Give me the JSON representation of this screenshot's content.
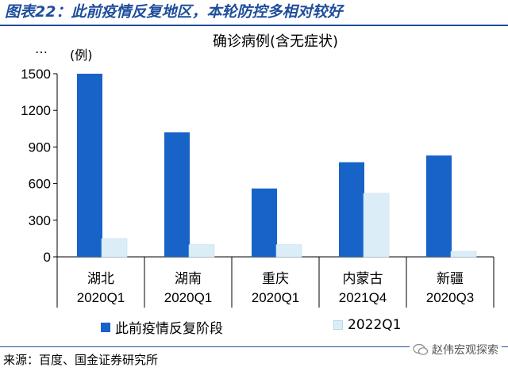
{
  "figure_title": "图表22：此前疫情反复地区，本轮防控多相对较好",
  "source_text": "来源：百度、国金证券研究所",
  "watermark_text": "赵伟宏观探索",
  "top_left_mark": "…",
  "colors": {
    "title": "#1f4e9c",
    "series1": "#1763c8",
    "series2": "#dbeef8"
  },
  "chart_data": {
    "type": "bar",
    "title": "确诊病例(含无症状)",
    "ylabel": "(例)",
    "xlabel": "",
    "categories": [
      [
        "湖北",
        "2020Q1"
      ],
      [
        "湖南",
        "2020Q1"
      ],
      [
        "重庆",
        "2020Q1"
      ],
      [
        "内蒙古",
        "2021Q4"
      ],
      [
        "新疆",
        "2020Q3"
      ]
    ],
    "series": [
      {
        "name": "此前疫情反复阶段",
        "color": "#1763c8",
        "values": [
          1500,
          1020,
          560,
          775,
          830
        ]
      },
      {
        "name": "2022Q1",
        "color": "#dbeef8",
        "values": [
          150,
          100,
          100,
          520,
          45
        ]
      }
    ],
    "ylim": [
      0,
      1500
    ],
    "yticks": [
      0,
      300,
      600,
      900,
      1200,
      1500
    ],
    "grid": false,
    "legend_position": "bottom"
  }
}
